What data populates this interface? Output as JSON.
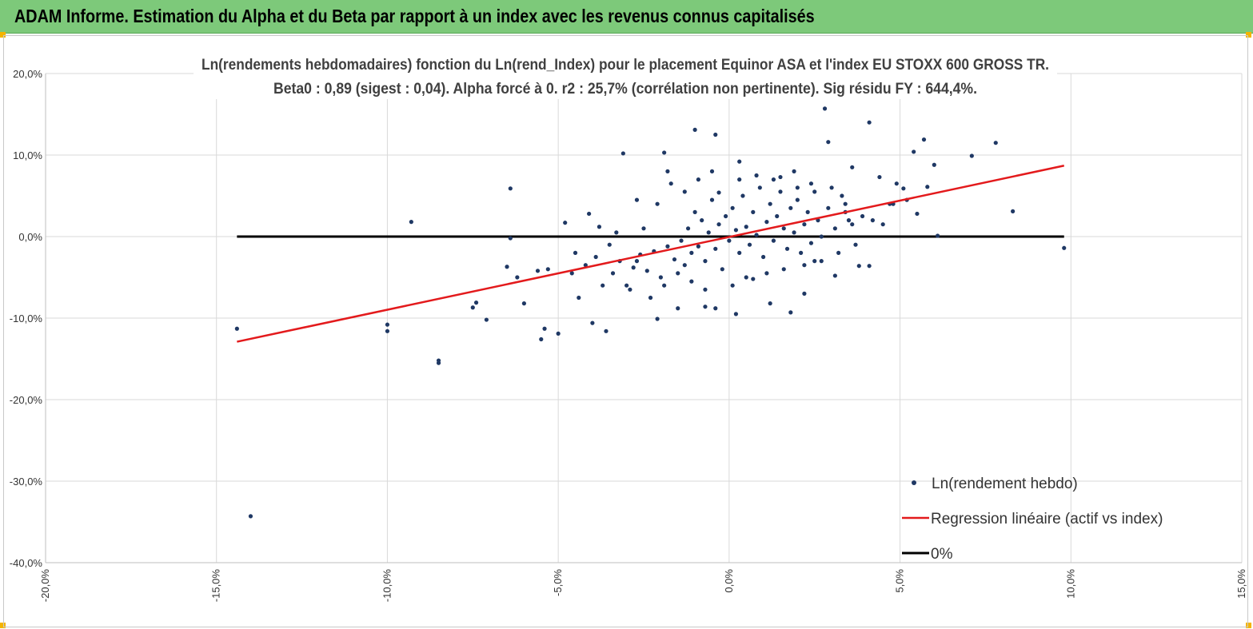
{
  "header": {
    "title": "ADAM Informe. Estimation du Alpha et du Beta par rapport à un index avec les revenus connus capitalisés"
  },
  "chart_data": {
    "type": "scatter",
    "title": "Ln(rendements hebdomadaires) fonction du Ln(rend_Index) pour le placement Equinor ASA et l'index EU STOXX 600 GROSS TR.",
    "subtitle": "Beta0 : 0,89 (sigest : 0,04). Alpha forcé à 0. r2 : 25,7% (corrélation non pertinente). Sig résidu FY : 644,4%.",
    "xlim": [
      -0.2,
      0.15
    ],
    "ylim": [
      -0.4,
      0.2
    ],
    "x_ticks": [
      {
        "v": -0.2,
        "label": "-20,0%"
      },
      {
        "v": -0.15,
        "label": "-15,0%"
      },
      {
        "v": -0.1,
        "label": "-10,0%"
      },
      {
        "v": -0.05,
        "label": "-5,0%"
      },
      {
        "v": 0.0,
        "label": "0,0%"
      },
      {
        "v": 0.05,
        "label": "5,0%"
      },
      {
        "v": 0.1,
        "label": "10,0%"
      },
      {
        "v": 0.15,
        "label": "15,0%"
      }
    ],
    "y_ticks": [
      {
        "v": 0.2,
        "label": "20,0%"
      },
      {
        "v": 0.1,
        "label": "10,0%"
      },
      {
        "v": 0.0,
        "label": "0,0%"
      },
      {
        "v": -0.1,
        "label": "-10,0%"
      },
      {
        "v": -0.2,
        "label": "-20,0%"
      },
      {
        "v": -0.3,
        "label": "-30,0%"
      },
      {
        "v": -0.4,
        "label": "-40,0%"
      }
    ],
    "grid": true,
    "legend_position": "bottom-right",
    "series": [
      {
        "name": "Ln(rendement hebdo)",
        "kind": "scatter",
        "color": "#1f3864",
        "points": [
          [
            -0.144,
            -0.113
          ],
          [
            -0.14,
            -0.343
          ],
          [
            -0.1,
            -0.108
          ],
          [
            -0.1,
            -0.116
          ],
          [
            -0.093,
            0.018
          ],
          [
            -0.085,
            -0.152
          ],
          [
            -0.085,
            -0.155
          ],
          [
            -0.075,
            -0.087
          ],
          [
            -0.074,
            -0.081
          ],
          [
            -0.071,
            -0.102
          ],
          [
            -0.065,
            -0.037
          ],
          [
            -0.064,
            0.059
          ],
          [
            -0.064,
            -0.002
          ],
          [
            -0.062,
            -0.05
          ],
          [
            -0.06,
            -0.082
          ],
          [
            -0.056,
            -0.042
          ],
          [
            -0.055,
            -0.126
          ],
          [
            -0.054,
            -0.113
          ],
          [
            -0.053,
            -0.04
          ],
          [
            -0.05,
            -0.119
          ],
          [
            -0.048,
            0.017
          ],
          [
            -0.046,
            -0.045
          ],
          [
            -0.044,
            -0.075
          ],
          [
            -0.041,
            0.028
          ],
          [
            -0.04,
            -0.106
          ],
          [
            -0.038,
            0.012
          ],
          [
            -0.036,
            -0.116
          ],
          [
            -0.031,
            0.102
          ],
          [
            -0.03,
            -0.06
          ],
          [
            -0.027,
            -0.03
          ],
          [
            -0.021,
            -0.101
          ],
          [
            -0.019,
            0.103
          ],
          [
            -0.018,
            0.08
          ],
          [
            -0.015,
            -0.088
          ],
          [
            -0.01,
            0.131
          ],
          [
            -0.007,
            -0.086
          ],
          [
            -0.004,
            0.125
          ],
          [
            -0.004,
            -0.088
          ],
          [
            -0.003,
            0.054
          ],
          [
            0.002,
            -0.095
          ],
          [
            0.003,
            0.092
          ],
          [
            0.007,
            -0.052
          ],
          [
            0.012,
            -0.082
          ],
          [
            0.015,
            0.073
          ],
          [
            0.018,
            -0.093
          ],
          [
            0.02,
            0.06
          ],
          [
            0.022,
            -0.07
          ],
          [
            0.025,
            -0.03
          ],
          [
            0.028,
            0.157
          ],
          [
            0.029,
            0.116
          ],
          [
            0.031,
            -0.048
          ],
          [
            0.034,
            0.04
          ],
          [
            0.036,
            0.085
          ],
          [
            0.038,
            -0.036
          ],
          [
            0.041,
            -0.036
          ],
          [
            0.041,
            0.14
          ],
          [
            0.044,
            0.073
          ],
          [
            0.047,
            0.04
          ],
          [
            0.049,
            0.065
          ],
          [
            0.051,
            0.059
          ],
          [
            0.054,
            0.104
          ],
          [
            0.055,
            0.028
          ],
          [
            0.057,
            0.119
          ],
          [
            0.058,
            0.061
          ],
          [
            0.06,
            0.088
          ],
          [
            0.061,
            0.001
          ],
          [
            0.071,
            0.099
          ],
          [
            0.078,
            0.115
          ],
          [
            0.083,
            0.031
          ],
          [
            0.098,
            -0.014
          ],
          [
            -0.032,
            -0.03
          ],
          [
            -0.028,
            -0.038
          ],
          [
            -0.026,
            -0.022
          ],
          [
            -0.024,
            -0.042
          ],
          [
            -0.022,
            -0.018
          ],
          [
            -0.02,
            -0.05
          ],
          [
            -0.018,
            -0.012
          ],
          [
            -0.016,
            -0.028
          ],
          [
            -0.014,
            -0.005
          ],
          [
            -0.013,
            -0.035
          ],
          [
            -0.012,
            0.01
          ],
          [
            -0.011,
            -0.02
          ],
          [
            -0.01,
            0.03
          ],
          [
            -0.009,
            -0.012
          ],
          [
            -0.008,
            0.02
          ],
          [
            -0.007,
            -0.03
          ],
          [
            -0.006,
            0.005
          ],
          [
            -0.005,
            0.045
          ],
          [
            -0.004,
            -0.015
          ],
          [
            -0.003,
            0.015
          ],
          [
            -0.002,
            -0.04
          ],
          [
            -0.001,
            0.025
          ],
          [
            0.0,
            -0.005
          ],
          [
            0.001,
            0.035
          ],
          [
            0.002,
            0.008
          ],
          [
            0.003,
            -0.02
          ],
          [
            0.004,
            0.05
          ],
          [
            0.005,
            0.012
          ],
          [
            0.006,
            -0.01
          ],
          [
            0.007,
            0.03
          ],
          [
            0.008,
            0.002
          ],
          [
            0.009,
            0.06
          ],
          [
            0.01,
            -0.025
          ],
          [
            0.011,
            0.018
          ],
          [
            0.012,
            0.04
          ],
          [
            0.013,
            -0.005
          ],
          [
            0.014,
            0.025
          ],
          [
            0.015,
            0.055
          ],
          [
            0.016,
            0.01
          ],
          [
            0.017,
            -0.015
          ],
          [
            0.018,
            0.035
          ],
          [
            0.019,
            0.005
          ],
          [
            0.02,
            0.045
          ],
          [
            0.021,
            -0.02
          ],
          [
            0.022,
            0.015
          ],
          [
            0.023,
            0.03
          ],
          [
            0.024,
            -0.008
          ],
          [
            0.025,
            0.055
          ],
          [
            0.026,
            0.02
          ],
          [
            0.027,
            0.0
          ],
          [
            0.029,
            0.035
          ],
          [
            0.031,
            0.01
          ],
          [
            0.033,
            0.05
          ],
          [
            0.035,
            0.02
          ],
          [
            0.037,
            -0.01
          ],
          [
            -0.045,
            -0.02
          ],
          [
            -0.042,
            -0.035
          ],
          [
            -0.039,
            -0.025
          ],
          [
            -0.037,
            -0.06
          ],
          [
            -0.035,
            -0.01
          ],
          [
            -0.034,
            -0.045
          ],
          [
            -0.033,
            0.005
          ],
          [
            -0.029,
            -0.065
          ],
          [
            -0.027,
            0.045
          ],
          [
            -0.025,
            0.01
          ],
          [
            -0.023,
            -0.075
          ],
          [
            -0.021,
            0.04
          ],
          [
            -0.019,
            -0.06
          ],
          [
            -0.017,
            0.065
          ],
          [
            -0.015,
            -0.045
          ],
          [
            -0.013,
            0.055
          ],
          [
            -0.011,
            -0.055
          ],
          [
            -0.009,
            0.07
          ],
          [
            -0.007,
            -0.065
          ],
          [
            -0.005,
            0.08
          ],
          [
            0.001,
            -0.06
          ],
          [
            0.003,
            0.07
          ],
          [
            0.005,
            -0.05
          ],
          [
            0.008,
            0.075
          ],
          [
            0.011,
            -0.045
          ],
          [
            0.013,
            0.07
          ],
          [
            0.016,
            -0.04
          ],
          [
            0.019,
            0.08
          ],
          [
            0.022,
            -0.035
          ],
          [
            0.024,
            0.065
          ],
          [
            0.027,
            -0.03
          ],
          [
            0.03,
            0.06
          ],
          [
            0.032,
            -0.02
          ],
          [
            0.034,
            0.03
          ],
          [
            0.036,
            0.015
          ],
          [
            0.039,
            0.025
          ],
          [
            0.042,
            0.02
          ],
          [
            0.045,
            0.015
          ],
          [
            0.048,
            0.04
          ],
          [
            0.052,
            0.045
          ]
        ]
      },
      {
        "name": "Regression linéaire (actif vs index)",
        "kind": "line",
        "color": "#e31a1c",
        "x": [
          -0.144,
          0.098
        ],
        "y": [
          -0.129,
          0.087
        ]
      },
      {
        "name": "0%",
        "kind": "line",
        "color": "#000000",
        "x": [
          -0.144,
          0.098
        ],
        "y": [
          0.0,
          0.0
        ]
      }
    ]
  }
}
